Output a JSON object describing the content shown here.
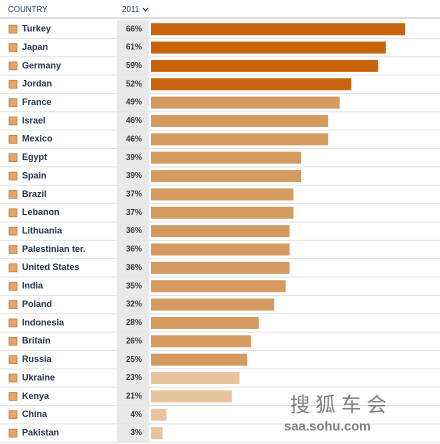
{
  "chart_data": {
    "type": "bar",
    "orientation": "horizontal",
    "header": {
      "category": "COUNTRY",
      "value": "2011"
    },
    "categories": [
      "Turkey",
      "Japan",
      "Germany",
      "Jordan",
      "France",
      "Israel",
      "Mexico",
      "Egypt",
      "Spain",
      "Brazil",
      "Lebanon",
      "Lithuania",
      "Palestinian ter.",
      "United States",
      "India",
      "Poland",
      "Indonesia",
      "Britain",
      "Russia",
      "Ukraine",
      "Kenya",
      "China",
      "Pakistan"
    ],
    "values": [
      66,
      61,
      59,
      52,
      49,
      46,
      46,
      39,
      39,
      37,
      37,
      36,
      36,
      36,
      35,
      32,
      28,
      26,
      25,
      23,
      21,
      4,
      3
    ],
    "value_labels": [
      "66%",
      "61%",
      "59%",
      "52%",
      "49%",
      "46%",
      "46%",
      "39%",
      "39%",
      "37%",
      "37%",
      "36%",
      "36%",
      "36%",
      "35%",
      "32%",
      "28%",
      "26%",
      "25%",
      "23%",
      "21%",
      "4%",
      "3%"
    ],
    "colors": [
      "#c9640c",
      "#c9640c",
      "#c9640c",
      "#c9640c",
      "#d49a60",
      "#d49a60",
      "#d49a60",
      "#d49a60",
      "#d49a60",
      "#d49a60",
      "#d49a60",
      "#d49a60",
      "#d49a60",
      "#d49a60",
      "#d49a60",
      "#d49a60",
      "#d49a60",
      "#d49a60",
      "#d49a60",
      "#e8c49e",
      "#e8c49e",
      "#e8c49e",
      "#e8c49e"
    ],
    "watermark": {
      "brand": "搜 狐 车 会",
      "url": "saa.sohu.com"
    }
  }
}
